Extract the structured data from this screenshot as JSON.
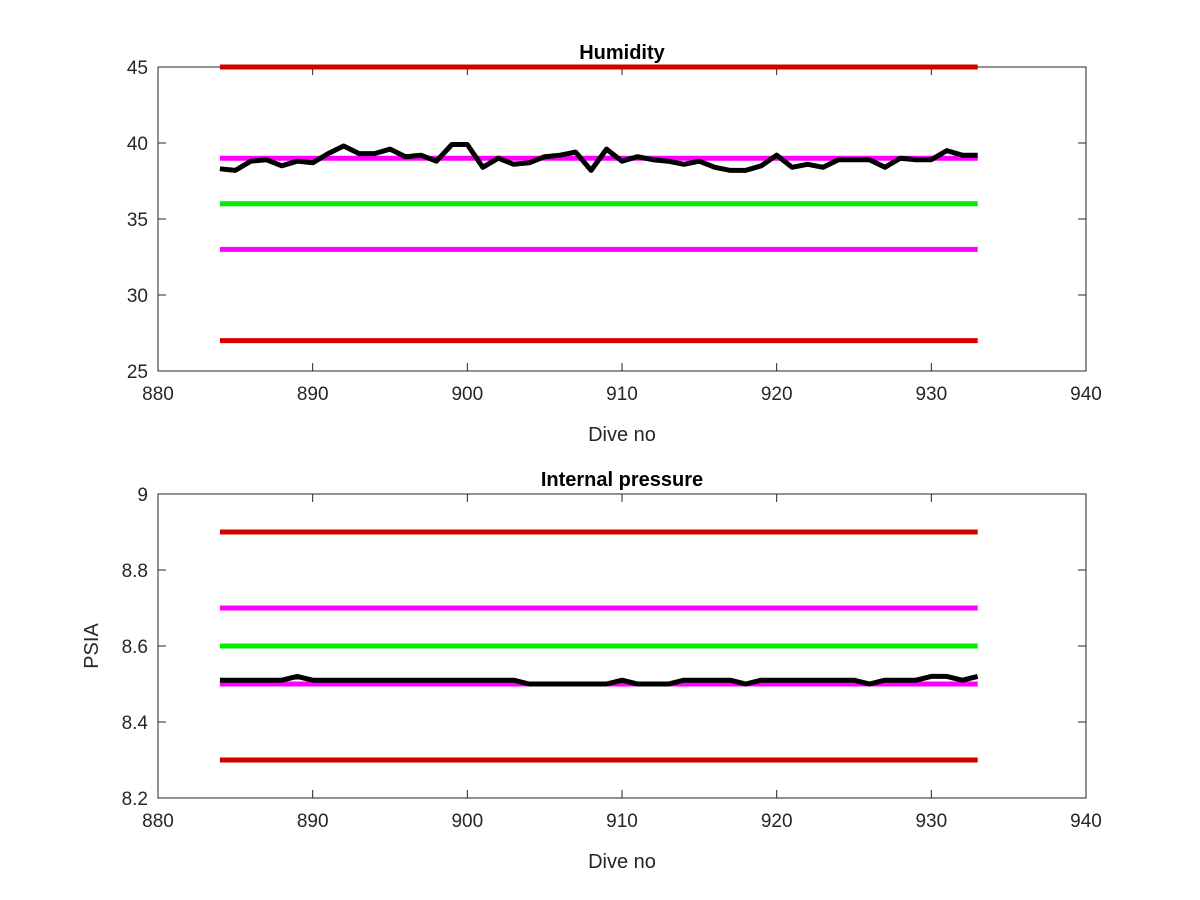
{
  "chart_data": [
    {
      "type": "line",
      "title": "Humidity",
      "xlabel": "Dive no",
      "ylabel": "",
      "xlim": [
        880,
        940
      ],
      "ylim": [
        25,
        45
      ],
      "xticks": [
        "880",
        "890",
        "900",
        "910",
        "920",
        "930",
        "940"
      ],
      "yticks": [
        "25",
        "30",
        "35",
        "40",
        "45"
      ],
      "grid": false,
      "series": [
        {
          "role": "measurement",
          "color": "#000000",
          "x": [
            884,
            885,
            886,
            887,
            888,
            889,
            890,
            891,
            892,
            893,
            894,
            895,
            896,
            897,
            898,
            899,
            900,
            901,
            902,
            903,
            904,
            905,
            906,
            907,
            908,
            909,
            910,
            911,
            912,
            913,
            914,
            915,
            916,
            917,
            918,
            919,
            920,
            921,
            922,
            923,
            924,
            925,
            926,
            927,
            928,
            929,
            930,
            931,
            932,
            933
          ],
          "values": [
            38.3,
            38.2,
            38.8,
            38.9,
            38.5,
            38.8,
            38.7,
            39.3,
            39.8,
            39.3,
            39.3,
            39.6,
            39.1,
            39.2,
            38.8,
            39.9,
            39.9,
            38.4,
            39.0,
            38.6,
            38.7,
            39.1,
            39.2,
            39.4,
            38.2,
            39.6,
            38.8,
            39.1,
            38.9,
            38.8,
            38.6,
            38.8,
            38.4,
            38.2,
            38.2,
            38.5,
            39.2,
            38.4,
            38.6,
            38.4,
            38.9,
            38.9,
            38.9,
            38.4,
            39.0,
            38.9,
            38.9,
            39.5,
            39.2,
            39.2
          ]
        },
        {
          "role": "limit",
          "color": "#d40000",
          "x": [
            884,
            933
          ],
          "values": [
            45,
            45
          ]
        },
        {
          "role": "limit",
          "color": "#ff00ff",
          "x": [
            884,
            933
          ],
          "values": [
            39,
            39
          ]
        },
        {
          "role": "limit",
          "color": "#00ee00",
          "x": [
            884,
            933
          ],
          "values": [
            36,
            36
          ]
        },
        {
          "role": "limit",
          "color": "#ff00ff",
          "x": [
            884,
            933
          ],
          "values": [
            33,
            33
          ]
        },
        {
          "role": "limit",
          "color": "#d40000",
          "x": [
            884,
            933
          ],
          "values": [
            27,
            27
          ]
        }
      ]
    },
    {
      "type": "line",
      "title": "Internal pressure",
      "xlabel": "Dive no",
      "ylabel": "PSIA",
      "xlim": [
        880,
        940
      ],
      "ylim": [
        8.2,
        9
      ],
      "xticks": [
        "880",
        "890",
        "900",
        "910",
        "920",
        "930",
        "940"
      ],
      "yticks": [
        "8.2",
        "8.4",
        "8.6",
        "8.8",
        "9"
      ],
      "grid": false,
      "series": [
        {
          "role": "measurement",
          "color": "#000000",
          "x": [
            884,
            885,
            886,
            887,
            888,
            889,
            890,
            891,
            892,
            893,
            894,
            895,
            896,
            897,
            898,
            899,
            900,
            901,
            902,
            903,
            904,
            905,
            906,
            907,
            908,
            909,
            910,
            911,
            912,
            913,
            914,
            915,
            916,
            917,
            918,
            919,
            920,
            921,
            922,
            923,
            924,
            925,
            926,
            927,
            928,
            929,
            930,
            931,
            932,
            933
          ],
          "values": [
            8.51,
            8.51,
            8.51,
            8.51,
            8.51,
            8.52,
            8.51,
            8.51,
            8.51,
            8.51,
            8.51,
            8.51,
            8.51,
            8.51,
            8.51,
            8.51,
            8.51,
            8.51,
            8.51,
            8.51,
            8.5,
            8.5,
            8.5,
            8.5,
            8.5,
            8.5,
            8.51,
            8.5,
            8.5,
            8.5,
            8.51,
            8.51,
            8.51,
            8.51,
            8.5,
            8.51,
            8.51,
            8.51,
            8.51,
            8.51,
            8.51,
            8.51,
            8.5,
            8.51,
            8.51,
            8.51,
            8.52,
            8.52,
            8.51,
            8.52
          ]
        },
        {
          "role": "limit",
          "color": "#d40000",
          "x": [
            884,
            933
          ],
          "values": [
            8.9,
            8.9
          ]
        },
        {
          "role": "limit",
          "color": "#ff00ff",
          "x": [
            884,
            933
          ],
          "values": [
            8.7,
            8.7
          ]
        },
        {
          "role": "limit",
          "color": "#00ee00",
          "x": [
            884,
            933
          ],
          "values": [
            8.6,
            8.6
          ]
        },
        {
          "role": "limit",
          "color": "#ff00ff",
          "x": [
            884,
            933
          ],
          "values": [
            8.5,
            8.5
          ]
        },
        {
          "role": "limit",
          "color": "#d40000",
          "x": [
            884,
            933
          ],
          "values": [
            8.3,
            8.3
          ]
        }
      ]
    }
  ]
}
